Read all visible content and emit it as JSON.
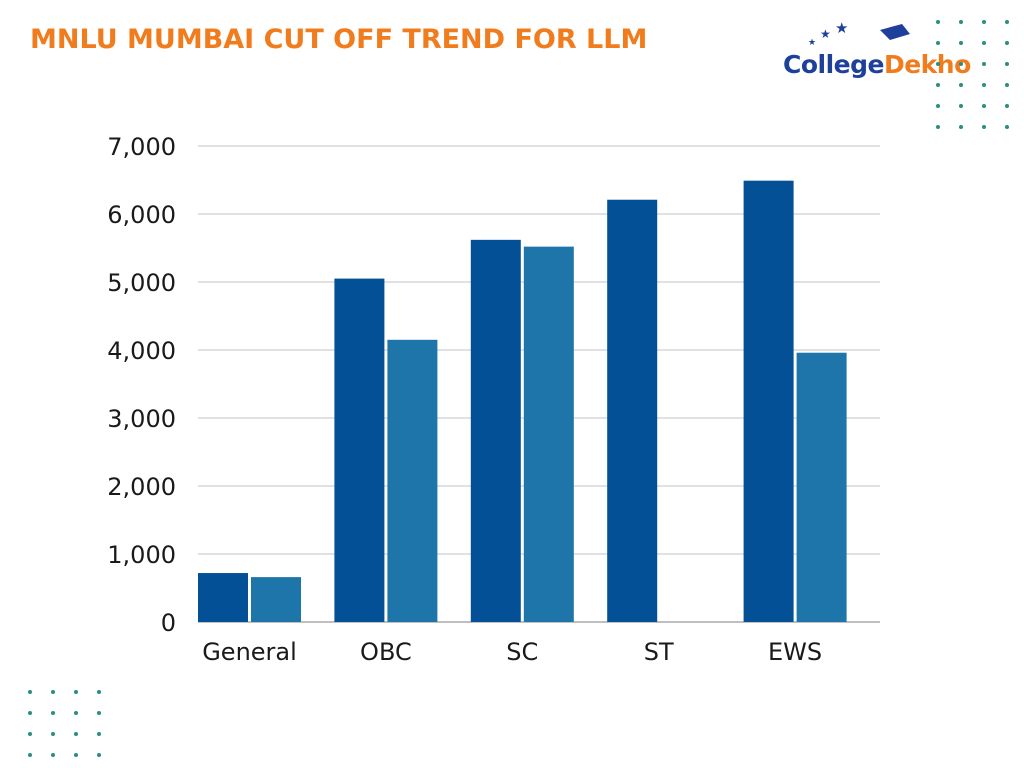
{
  "title": "MNLU MUMBAI CUT OFF TREND FOR LLM",
  "logo": {
    "part1": "College",
    "part2": "Dekho"
  },
  "colors": {
    "title": "#f07c1e",
    "series1": "#035096",
    "series2": "#1e75aa",
    "grid": "#cfcfcf",
    "dots": "#2a8f7f"
  },
  "chart_data": {
    "type": "bar",
    "categories": [
      "General",
      "OBC",
      "SC",
      "ST",
      "EWS"
    ],
    "series": [
      {
        "values": [
          720,
          5050,
          5620,
          6210,
          6490
        ]
      },
      {
        "values": [
          660,
          4150,
          5520,
          0,
          3960
        ]
      }
    ],
    "ylim": [
      0,
      7000
    ],
    "yticks": [
      "0",
      "1,000",
      "2,000",
      "3,000",
      "4,000",
      "5,000",
      "6,000",
      "7,000"
    ],
    "grid": true,
    "legend": "none"
  }
}
